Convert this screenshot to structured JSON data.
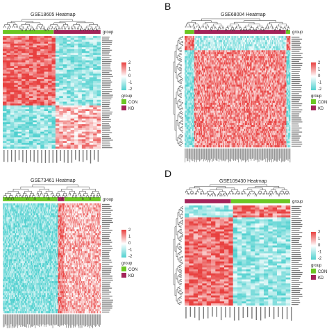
{
  "figure": {
    "panels": [
      {
        "letter": "",
        "title": "GSE18605 Heatmap"
      },
      {
        "letter": "B",
        "title": "GSE68004 Heatmap"
      },
      {
        "letter": "",
        "title": "GSE73461 Heatmap"
      },
      {
        "letter": "D",
        "title": "GSE109430 Heatmap"
      }
    ],
    "legend": {
      "scale_ticks": [
        "2",
        "1",
        "0",
        "-1",
        "-2"
      ],
      "group_title": "group",
      "groups": [
        "CON",
        "KD"
      ],
      "group_colors": {
        "CON": "#6cc624",
        "KD": "#a3245a"
      },
      "top_group_label": "group"
    }
  },
  "colors": {
    "high": "#e8403f",
    "mid": "#ffffff",
    "low": "#4fd0cf",
    "tree": "#333333"
  },
  "chart_data": [
    {
      "type": "heatmap",
      "title": "GSE18605 Heatmap",
      "color_range": [
        -2,
        2
      ],
      "group_order": [
        "CON",
        "KD"
      ],
      "n_samples": 26,
      "n_genes": 60
    },
    {
      "type": "heatmap",
      "title": "GSE68004 Heatmap",
      "color_range": [
        -2,
        2
      ],
      "group_order": [
        "CON",
        "KD",
        "CON"
      ],
      "n_samples": 110,
      "n_genes": 55
    },
    {
      "type": "heatmap",
      "title": "GSE73461 Heatmap",
      "color_range": [
        -2,
        2
      ],
      "group_order": [
        "CON",
        "KD",
        "CON"
      ],
      "n_samples": 110,
      "n_genes": 55
    },
    {
      "type": "heatmap",
      "title": "GSE109430 Heatmap",
      "color_range": [
        -2,
        2
      ],
      "group_order": [
        "KD",
        "CON"
      ],
      "n_samples": 24,
      "n_genes": 50
    }
  ]
}
